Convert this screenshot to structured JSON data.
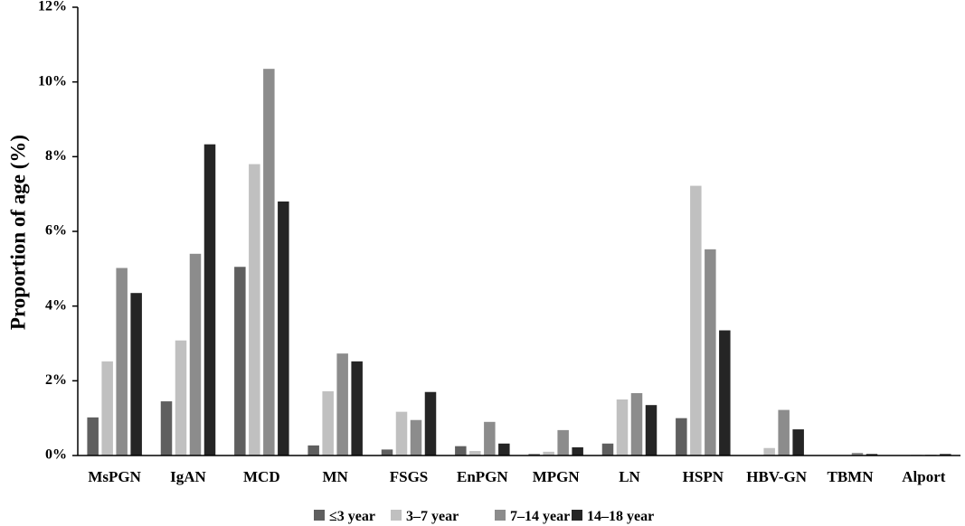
{
  "chart_data": {
    "type": "bar",
    "title": "",
    "xlabel": "",
    "ylabel": "Proportion of age (%)",
    "ylim": [
      0,
      12
    ],
    "yticks": [
      "0%",
      "2%",
      "4%",
      "6%",
      "8%",
      "10%",
      "12%"
    ],
    "grid": false,
    "legend_position": "bottom",
    "categories": [
      "MsPGN",
      "IgAN",
      "MCD",
      "MN",
      "FSGS",
      "EnPGN",
      "MPGN",
      "LN",
      "HSPN",
      "HBV-GN",
      "TBMN",
      "Alport"
    ],
    "series": [
      {
        "name": "≤3 year",
        "color": "#5f5f5f",
        "values": [
          1.02,
          1.45,
          5.05,
          0.27,
          0.16,
          0.25,
          0.04,
          0.32,
          1.0,
          0.0,
          0.0,
          0.0
        ]
      },
      {
        "name": "3–7 year",
        "color": "#c0c0c0",
        "values": [
          2.52,
          3.08,
          7.8,
          1.72,
          1.17,
          0.12,
          0.1,
          1.5,
          7.22,
          0.2,
          0.0,
          0.02
        ]
      },
      {
        "name": "7–14 year",
        "color": "#8c8c8c",
        "values": [
          5.02,
          5.4,
          10.35,
          2.73,
          0.95,
          0.9,
          0.68,
          1.67,
          5.52,
          1.22,
          0.07,
          0.02
        ]
      },
      {
        "name": "14–18 year",
        "color": "#252525",
        "values": [
          4.35,
          8.33,
          6.8,
          2.52,
          1.7,
          0.32,
          0.22,
          1.35,
          3.35,
          0.7,
          0.04,
          0.04
        ]
      }
    ]
  }
}
